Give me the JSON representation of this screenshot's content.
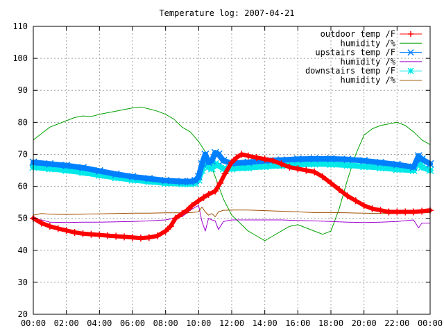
{
  "chart_data": {
    "type": "line",
    "title": "Temperature log: 2007-04-21",
    "xlabel": "",
    "ylabel": "",
    "xlim": [
      0,
      24
    ],
    "ylim": [
      20,
      110
    ],
    "grid": true,
    "legend_position": "top-right",
    "x_ticks": [
      "00:00",
      "02:00",
      "04:00",
      "06:00",
      "08:00",
      "10:00",
      "12:00",
      "14:00",
      "16:00",
      "18:00",
      "20:00",
      "22:00",
      "00:00"
    ],
    "y_ticks": [
      "20",
      "30",
      "40",
      "50",
      "60",
      "70",
      "80",
      "90",
      "100",
      "110"
    ],
    "series": [
      {
        "name": "outdoor temp /F",
        "color": "#ff0000",
        "marker": "plus",
        "x": [
          0,
          0.5,
          1,
          1.5,
          2,
          2.5,
          3,
          3.5,
          4,
          4.5,
          5,
          5.5,
          6,
          6.5,
          7,
          7.5,
          8,
          8.3,
          8.6,
          9,
          9.3,
          9.6,
          10,
          10.3,
          10.6,
          11,
          11.3,
          11.6,
          12,
          12.3,
          12.6,
          13,
          13.5,
          14,
          14.5,
          15,
          15.5,
          16,
          16.5,
          17,
          17.5,
          18,
          18.5,
          19,
          19.5,
          20,
          20.5,
          21,
          21.5,
          22,
          22.5,
          23,
          23.5,
          24
        ],
        "values": [
          50,
          48.5,
          47.5,
          46.8,
          46.2,
          45.6,
          45.2,
          45,
          44.8,
          44.6,
          44.4,
          44.2,
          44,
          43.8,
          44,
          44.5,
          46,
          47.5,
          50,
          51.5,
          52.5,
          54,
          55.5,
          56.5,
          57.5,
          58.5,
          61,
          64,
          67.5,
          69,
          70,
          69.5,
          69,
          68.5,
          68,
          67,
          66,
          65.5,
          65,
          64.5,
          63,
          61,
          59,
          57,
          55.5,
          54,
          53,
          52.5,
          52,
          52,
          52,
          52,
          52.2,
          52.5
        ]
      },
      {
        "name": "humidity /%",
        "color": "#00a000",
        "marker": "none",
        "x": [
          0,
          0.5,
          1,
          1.5,
          2,
          2.5,
          3,
          3.5,
          4,
          4.5,
          5,
          5.5,
          6,
          6.5,
          7,
          7.5,
          8,
          8.5,
          9,
          9.5,
          10,
          10.5,
          11,
          11.5,
          12,
          12.5,
          13,
          13.5,
          14,
          14.5,
          15,
          15.5,
          16,
          16.5,
          17,
          17.5,
          18,
          18.5,
          19,
          19.5,
          20,
          20.5,
          21,
          21.5,
          22,
          22.5,
          23,
          23.5,
          24
        ],
        "values": [
          74.5,
          76.5,
          78.5,
          79.5,
          80.5,
          81.5,
          82,
          81.8,
          82.5,
          83,
          83.5,
          84,
          84.5,
          84.8,
          84.2,
          83.5,
          82.5,
          81,
          78.5,
          77,
          74,
          70,
          63,
          56,
          51,
          48.5,
          46,
          44.5,
          43,
          44.5,
          46,
          47.5,
          48,
          47,
          46,
          45,
          46,
          53,
          62,
          70,
          76,
          78,
          79,
          79.5,
          80,
          79,
          77,
          74.5,
          73
        ]
      },
      {
        "name": "upstairs temp /F",
        "color": "#0080ff",
        "marker": "cross",
        "x": [
          0,
          1,
          2,
          3,
          4,
          5,
          6,
          7,
          8,
          9,
          9.5,
          9.8,
          10,
          10.2,
          10.4,
          10.6,
          10.8,
          11,
          11.2,
          11.5,
          12,
          13,
          14,
          15,
          16,
          17,
          18,
          19,
          20,
          21,
          22,
          23,
          23.3,
          23.5,
          24
        ],
        "values": [
          67.5,
          67,
          66.5,
          65.8,
          64.8,
          63.8,
          63,
          62.4,
          61.8,
          61.5,
          61.5,
          61.8,
          63,
          67,
          70,
          67.5,
          68,
          70.5,
          70,
          68,
          67.2,
          67.5,
          68,
          68.2,
          68.5,
          68.6,
          68.6,
          68.4,
          68,
          67.4,
          66.8,
          66,
          69.5,
          68.5,
          67
        ]
      },
      {
        "name": "humidity /%",
        "color": "#a000d0",
        "marker": "none",
        "x": [
          0,
          0.5,
          1,
          2,
          3,
          4,
          5,
          6,
          7,
          8,
          9,
          9.5,
          9.8,
          10,
          10.2,
          10.4,
          10.6,
          10.8,
          11,
          11.2,
          11.5,
          12,
          13,
          14,
          15,
          16,
          17,
          18,
          19,
          20,
          21,
          22,
          23,
          23.3,
          23.5,
          24
        ],
        "values": [
          49.8,
          49.5,
          48.8,
          48.7,
          48.8,
          48.8,
          48.9,
          49,
          49.2,
          49.5,
          50.5,
          52.5,
          53.5,
          54,
          49,
          46,
          50,
          49.5,
          49.2,
          46.5,
          49,
          49.5,
          49.5,
          49.5,
          49.5,
          49.3,
          49.2,
          49,
          48.8,
          48.7,
          48.8,
          49,
          49.5,
          47,
          48.5,
          48.5
        ]
      },
      {
        "name": "downstairs temp /F",
        "color": "#00e8e8",
        "marker": "star",
        "x": [
          0,
          1,
          2,
          3,
          4,
          5,
          6,
          7,
          8,
          9,
          9.5,
          9.8,
          10,
          10.2,
          10.4,
          10.6,
          10.8,
          11,
          11.2,
          11.5,
          12,
          13,
          14,
          15,
          16,
          17,
          18,
          19,
          20,
          21,
          22,
          23,
          23.3,
          23.5,
          24
        ],
        "values": [
          66,
          65.5,
          65,
          64.3,
          63.5,
          62.7,
          62,
          61.5,
          61,
          60.8,
          60.8,
          61,
          62,
          65,
          68,
          66,
          65.5,
          67,
          66.5,
          65.5,
          65.5,
          65.8,
          66.2,
          66.5,
          66.8,
          67,
          66.9,
          66.6,
          66.2,
          65.8,
          65.3,
          65,
          68,
          66,
          65
        ]
      },
      {
        "name": "humidity /%",
        "color": "#a05000",
        "marker": "none",
        "x": [
          0,
          0.5,
          1,
          2,
          3,
          4,
          5,
          6,
          7,
          8,
          9,
          9.5,
          10,
          10.2,
          10.4,
          10.6,
          10.8,
          11,
          11.2,
          11.5,
          12,
          13,
          14,
          15,
          16,
          17,
          18,
          19,
          20,
          21,
          22,
          23,
          24
        ],
        "values": [
          51,
          51.5,
          51.3,
          51.2,
          51.3,
          51.4,
          51.5,
          51.6,
          51.6,
          51.7,
          51.7,
          51.8,
          52,
          53.5,
          52,
          51,
          51.5,
          50.5,
          52,
          52.5,
          52.6,
          52.6,
          52.4,
          52.2,
          52,
          51.8,
          51.8,
          51.7,
          51.6,
          51.5,
          51.5,
          51.6,
          51.8
        ]
      }
    ]
  }
}
